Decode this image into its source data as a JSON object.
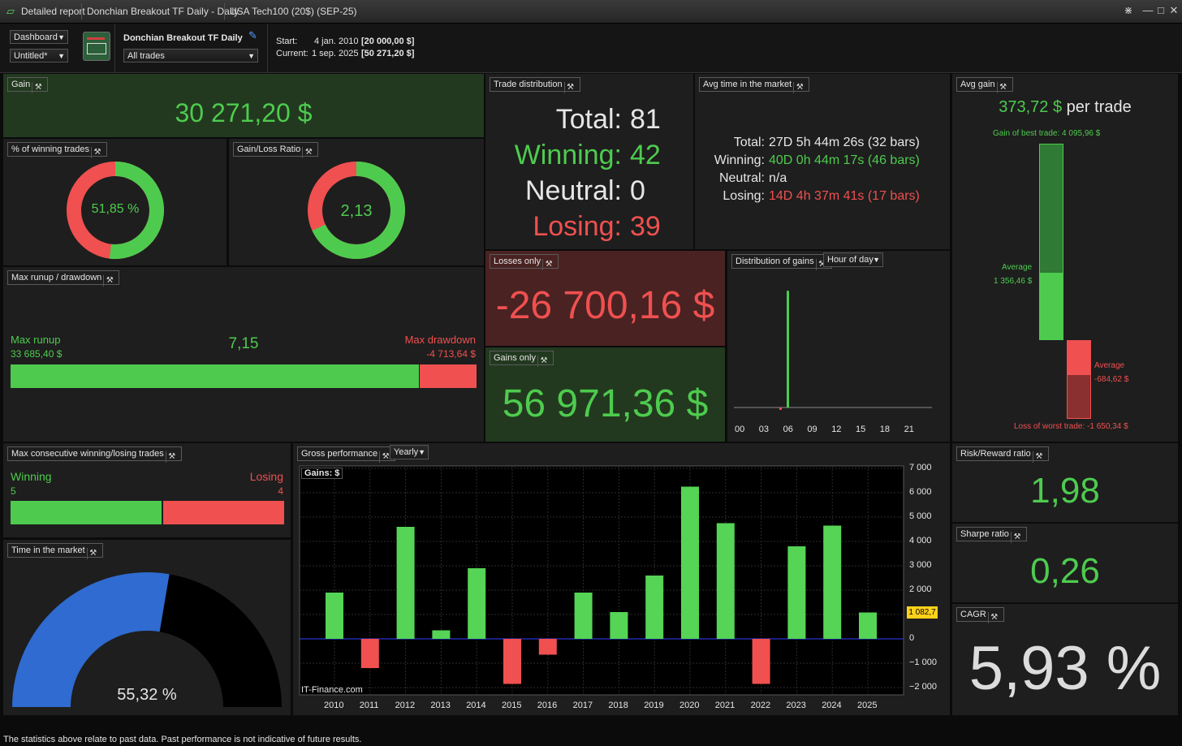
{
  "titlebar": {
    "app": "Detailed report",
    "strategy_tab": "Donchian Breakout TF Daily - Daily",
    "instrument_tab": "USA Tech100 (20$) (SEP-25)"
  },
  "header": {
    "dashboard_select": "Dashboard",
    "layout_select": "Untitled*",
    "strategy_name": "Donchian Breakout TF Daily",
    "trades_filter": "All trades",
    "start_label": "Start:",
    "start_date": "4 jan. 2010",
    "start_value": "[20 000,00 $]",
    "current_label": "Current:",
    "current_date": "1 sep. 2025",
    "current_value": "[50 271,20 $]"
  },
  "gain": {
    "title": "Gain",
    "value": "30 271,20 $"
  },
  "winning_pct": {
    "title": "% of winning trades",
    "value": "51,85 %",
    "fraction": 0.5185
  },
  "gain_loss_ratio": {
    "title": "Gain/Loss Ratio",
    "value": "2,13",
    "fraction": 0.68
  },
  "trade_distribution": {
    "title": "Trade distribution",
    "rows": [
      {
        "label": "Total:",
        "value": "81"
      },
      {
        "label": "Winning:",
        "value": "42"
      },
      {
        "label": "Neutral:",
        "value": "0"
      },
      {
        "label": "Losing:",
        "value": "39"
      }
    ]
  },
  "avg_time": {
    "title": "Avg time in the market",
    "rows": [
      {
        "label": "Total:",
        "value": "27D 5h 44m 26s (32 bars)"
      },
      {
        "label": "Winning:",
        "value": "40D 0h 44m 17s (46 bars)"
      },
      {
        "label": "Neutral:",
        "value": "n/a"
      },
      {
        "label": "Losing:",
        "value": "14D 4h 37m 41s (17 bars)"
      }
    ]
  },
  "avg_gain": {
    "title": "Avg gain",
    "value": "373,72 $",
    "unit": "per trade",
    "best_label": "Gain of best trade: 4 095,96 $",
    "avg_win_label": "Average",
    "avg_win_value": "1 356,46 $",
    "avg_loss_label": "Average",
    "avg_loss_value": "-684,62 $",
    "worst_label": "Loss of worst trade: -1 650,34 $"
  },
  "max_runup": {
    "title": "Max runup / drawdown",
    "runup_label": "Max runup",
    "runup_value": "33 685,40 $",
    "ratio": "7,15",
    "drawdown_label": "Max drawdown",
    "drawdown_value": "-4 713,64 $"
  },
  "losses_only": {
    "title": "Losses only",
    "value": "-26 700,16 $"
  },
  "gains_only": {
    "title": "Gains only",
    "value": "56 971,36 $"
  },
  "distribution_gains": {
    "title": "Distribution of gains",
    "select": "Hour of day",
    "ticks": [
      "00",
      "03",
      "06",
      "09",
      "12",
      "15",
      "18",
      "21"
    ]
  },
  "max_consecutive": {
    "title": "Max consecutive winning/losing trades",
    "win_label": "Winning",
    "win_value": "5",
    "lose_label": "Losing",
    "lose_value": "4"
  },
  "gross_performance": {
    "title": "Gross performance",
    "select": "Yearly",
    "legend": "Gains: $",
    "watermark": "IT-Finance.com",
    "last_value_label": "1 082,7"
  },
  "time_in_market": {
    "title": "Time in the market",
    "value": "55,32 %",
    "fraction": 0.5532
  },
  "risk_reward": {
    "title": "Risk/Reward ratio",
    "value": "1,98"
  },
  "sharpe": {
    "title": "Sharpe ratio",
    "value": "0,26"
  },
  "cagr": {
    "title": "CAGR",
    "value": "5,93 %"
  },
  "footer": {
    "text": "The statistics above relate to past data. Past performance is not indicative of future results."
  },
  "colors": {
    "green": "#4ecb4e",
    "red": "#f05050",
    "blue": "#2f6bd0",
    "panel": "#1e1e1e"
  },
  "chart_data": {
    "type": "bar",
    "categories": [
      "2010",
      "2011",
      "2012",
      "2013",
      "2014",
      "2015",
      "2016",
      "2017",
      "2018",
      "2019",
      "2020",
      "2021",
      "2022",
      "2023",
      "2024",
      "2025"
    ],
    "values": [
      1900,
      -1200,
      4600,
      350,
      2900,
      -1850,
      -650,
      1900,
      1100,
      2600,
      6250,
      4750,
      -1850,
      3800,
      4650,
      1083
    ],
    "ylim": [
      -2300,
      7100
    ],
    "yticks": [
      {
        "v": 7000,
        "label": "7 000"
      },
      {
        "v": 6000,
        "label": "6 000"
      },
      {
        "v": 5000,
        "label": "5 000"
      },
      {
        "v": 4000,
        "label": "4 000"
      },
      {
        "v": 3000,
        "label": "3 000"
      },
      {
        "v": 2000,
        "label": "2 000"
      },
      {
        "v": 1000,
        "label": "1 000"
      },
      {
        "v": 0,
        "label": "0"
      },
      {
        "v": -1000,
        "label": "−1 000"
      },
      {
        "v": -2000,
        "label": "−2 000"
      }
    ],
    "grid": true
  },
  "hour_chart_data": {
    "type": "bar",
    "categories": [
      "05",
      "06"
    ],
    "values": [
      -2,
      100
    ],
    "ylim": [
      -5,
      105
    ]
  }
}
